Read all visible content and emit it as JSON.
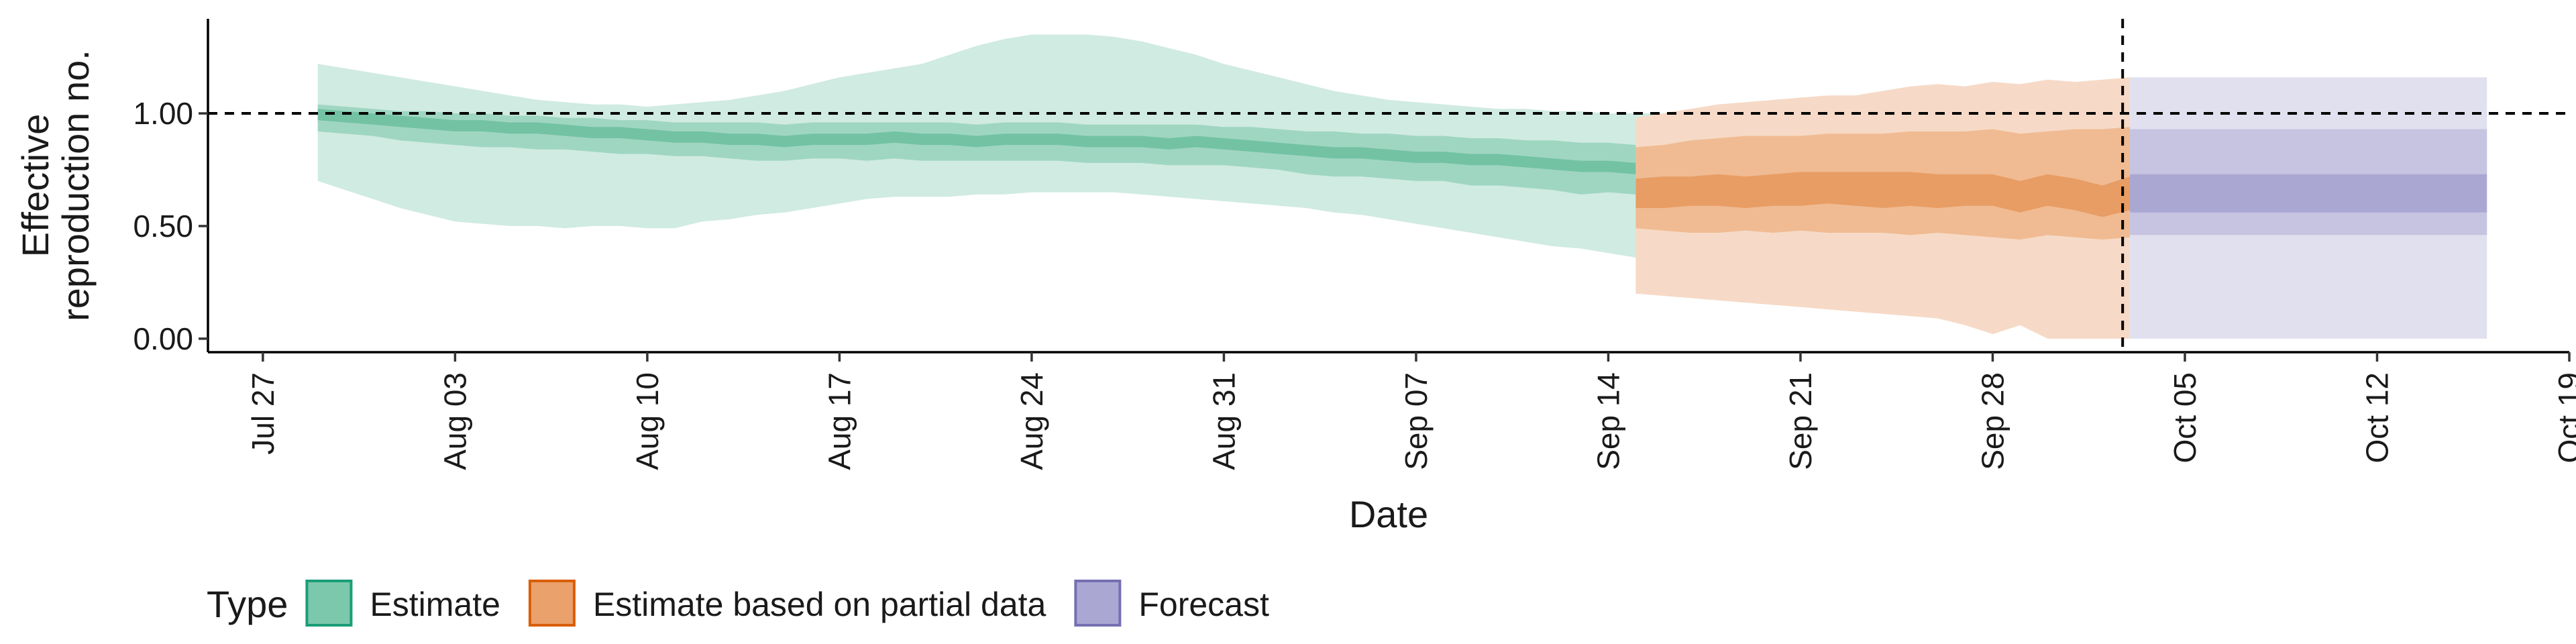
{
  "chart_data": {
    "type": "area",
    "xlabel": "Date",
    "ylabel_lines": [
      "Effective",
      "reproduction no."
    ],
    "x_ticks": [
      "2020-07-27",
      "2020-08-03",
      "2020-08-10",
      "2020-08-17",
      "2020-08-24",
      "2020-08-31",
      "2020-09-07",
      "2020-09-14",
      "2020-09-21",
      "2020-09-28",
      "2020-10-05",
      "2020-10-12",
      "2020-10-19"
    ],
    "x_tick_labels": [
      "Jul 27",
      "Aug 03",
      "Aug 10",
      "Aug 17",
      "Aug 24",
      "Aug 31",
      "Sep 07",
      "Sep 14",
      "Sep 21",
      "Sep 28",
      "Oct 05",
      "Oct 12",
      "Oct 19"
    ],
    "xlim": [
      "2020-07-25",
      "2020-10-19"
    ],
    "y_ticks": [
      0,
      0.5,
      1.0
    ],
    "y_tick_labels": [
      "0.00",
      "0.50",
      "1.00"
    ],
    "ylim": [
      -0.06,
      1.42
    ],
    "reference_line_y": 1.0,
    "forecast_start": "2020-10-02",
    "legend": {
      "title": "Type",
      "position": "bottom",
      "items": [
        {
          "label": "Estimate",
          "fill": "#7cc8ad",
          "stroke": "#1b9e77"
        },
        {
          "label": "Estimate based on partial data",
          "fill": "#eba16b",
          "stroke": "#d95f02"
        },
        {
          "label": "Forecast",
          "fill": "#aaa8d3",
          "stroke": "#7570b3"
        }
      ]
    },
    "series": [
      {
        "name": "Estimate",
        "start": "2020-07-29",
        "colors": {
          "outer": "#d0ebe1",
          "mid": "#9fd6c2",
          "inner": "#73c2a4"
        },
        "lower90": [
          0.7,
          0.66,
          0.62,
          0.58,
          0.55,
          0.52,
          0.51,
          0.5,
          0.5,
          0.49,
          0.5,
          0.5,
          0.49,
          0.49,
          0.52,
          0.53,
          0.55,
          0.56,
          0.58,
          0.6,
          0.62,
          0.63,
          0.63,
          0.63,
          0.64,
          0.64,
          0.65,
          0.65,
          0.65,
          0.65,
          0.64,
          0.63,
          0.62,
          0.61,
          0.6,
          0.59,
          0.58,
          0.56,
          0.55,
          0.53,
          0.51,
          0.49,
          0.47,
          0.45,
          0.43,
          0.41,
          0.4,
          0.38,
          0.36,
          0.34,
          0.33,
          0.31,
          0.3,
          0.29,
          0.28,
          0.27,
          0.26,
          0.25,
          0.24,
          0.23
        ],
        "lower50": [
          0.92,
          0.91,
          0.9,
          0.88,
          0.87,
          0.86,
          0.85,
          0.85,
          0.84,
          0.84,
          0.83,
          0.82,
          0.82,
          0.81,
          0.81,
          0.8,
          0.79,
          0.79,
          0.8,
          0.8,
          0.79,
          0.8,
          0.79,
          0.79,
          0.79,
          0.79,
          0.79,
          0.79,
          0.78,
          0.78,
          0.78,
          0.77,
          0.77,
          0.77,
          0.76,
          0.75,
          0.73,
          0.72,
          0.72,
          0.71,
          0.7,
          0.7,
          0.68,
          0.68,
          0.67,
          0.66,
          0.64,
          0.65,
          0.64,
          0.63,
          0.62,
          0.63,
          0.61,
          0.6,
          0.59,
          0.58,
          0.58,
          0.57,
          0.56,
          0.55
        ],
        "lower_med": [
          0.97,
          0.96,
          0.95,
          0.94,
          0.93,
          0.92,
          0.92,
          0.91,
          0.91,
          0.9,
          0.89,
          0.89,
          0.88,
          0.87,
          0.87,
          0.86,
          0.86,
          0.85,
          0.86,
          0.86,
          0.86,
          0.87,
          0.86,
          0.86,
          0.85,
          0.86,
          0.86,
          0.86,
          0.85,
          0.85,
          0.85,
          0.84,
          0.85,
          0.84,
          0.83,
          0.82,
          0.81,
          0.8,
          0.8,
          0.79,
          0.78,
          0.78,
          0.77,
          0.77,
          0.76,
          0.75,
          0.74,
          0.74,
          0.73,
          0.72,
          0.72,
          0.71,
          0.7,
          0.69,
          0.69,
          0.68,
          0.68,
          0.67,
          0.66,
          0.62
        ],
        "upper_med": [
          1.02,
          1.01,
          1.0,
          0.99,
          0.98,
          0.97,
          0.97,
          0.96,
          0.96,
          0.95,
          0.94,
          0.94,
          0.93,
          0.92,
          0.92,
          0.91,
          0.91,
          0.9,
          0.91,
          0.91,
          0.91,
          0.92,
          0.91,
          0.91,
          0.9,
          0.91,
          0.91,
          0.91,
          0.9,
          0.9,
          0.9,
          0.89,
          0.9,
          0.89,
          0.88,
          0.87,
          0.86,
          0.85,
          0.85,
          0.84,
          0.83,
          0.83,
          0.82,
          0.82,
          0.81,
          0.8,
          0.79,
          0.79,
          0.78,
          0.77,
          0.77,
          0.76,
          0.75,
          0.74,
          0.74,
          0.73,
          0.73,
          0.76,
          0.76,
          0.75
        ],
        "upper50": [
          1.04,
          1.03,
          1.02,
          1.01,
          1.01,
          1.0,
          1.0,
          0.99,
          0.99,
          0.98,
          0.98,
          0.97,
          0.97,
          0.96,
          0.96,
          0.96,
          0.96,
          0.95,
          0.96,
          0.96,
          0.96,
          0.96,
          0.96,
          0.96,
          0.95,
          0.96,
          0.96,
          0.96,
          0.95,
          0.95,
          0.95,
          0.95,
          0.95,
          0.94,
          0.94,
          0.93,
          0.92,
          0.92,
          0.91,
          0.91,
          0.9,
          0.9,
          0.89,
          0.89,
          0.88,
          0.88,
          0.87,
          0.87,
          0.86,
          0.86,
          0.85,
          0.85,
          0.84,
          0.84,
          0.84,
          0.85,
          0.85,
          0.85,
          0.85,
          0.84
        ],
        "upper90": [
          1.22,
          1.2,
          1.18,
          1.16,
          1.14,
          1.12,
          1.1,
          1.08,
          1.06,
          1.05,
          1.04,
          1.04,
          1.03,
          1.04,
          1.05,
          1.06,
          1.08,
          1.1,
          1.13,
          1.16,
          1.18,
          1.2,
          1.22,
          1.26,
          1.3,
          1.33,
          1.35,
          1.35,
          1.35,
          1.34,
          1.32,
          1.29,
          1.26,
          1.22,
          1.19,
          1.16,
          1.13,
          1.1,
          1.08,
          1.06,
          1.05,
          1.04,
          1.03,
          1.02,
          1.02,
          1.01,
          1.01,
          1.0,
          1.0,
          1.0,
          0.99,
          0.99,
          0.99,
          0.99,
          0.99,
          0.99,
          0.98,
          0.98,
          0.98,
          0.98
        ]
      },
      {
        "name": "Estimate based on partial data",
        "start": "2020-09-15",
        "colors": {
          "outer": "#f6dac7",
          "mid": "#f0bb93",
          "inner": "#e89d64"
        },
        "lower90": [
          0.2,
          0.19,
          0.18,
          0.17,
          0.16,
          0.15,
          0.14,
          0.13,
          0.12,
          0.11,
          0.1,
          0.09,
          0.06,
          0.02,
          0.06,
          0.0,
          0.0,
          0.0,
          0.0
        ],
        "lower50": [
          0.49,
          0.48,
          0.47,
          0.47,
          0.48,
          0.47,
          0.48,
          0.47,
          0.47,
          0.47,
          0.46,
          0.47,
          0.46,
          0.45,
          0.44,
          0.46,
          0.45,
          0.44,
          0.45
        ],
        "lower_med": [
          0.58,
          0.58,
          0.59,
          0.59,
          0.58,
          0.59,
          0.59,
          0.6,
          0.59,
          0.58,
          0.59,
          0.58,
          0.59,
          0.59,
          0.56,
          0.59,
          0.57,
          0.54,
          0.57
        ],
        "upper_med": [
          0.71,
          0.72,
          0.72,
          0.73,
          0.72,
          0.73,
          0.74,
          0.74,
          0.74,
          0.74,
          0.74,
          0.73,
          0.73,
          0.73,
          0.7,
          0.73,
          0.71,
          0.68,
          0.72
        ],
        "upper50": [
          0.85,
          0.86,
          0.88,
          0.89,
          0.9,
          0.9,
          0.9,
          0.91,
          0.91,
          0.91,
          0.92,
          0.92,
          0.92,
          0.93,
          0.91,
          0.92,
          0.93,
          0.93,
          0.94
        ],
        "upper90": [
          0.98,
          1.0,
          1.02,
          1.04,
          1.05,
          1.06,
          1.07,
          1.08,
          1.08,
          1.1,
          1.12,
          1.13,
          1.12,
          1.14,
          1.13,
          1.15,
          1.14,
          1.15,
          1.16
        ]
      },
      {
        "name": "Forecast",
        "start": "2020-10-03",
        "end": "2020-10-16",
        "colors": {
          "outer": "#e0e0ef",
          "mid": "#c6c4e1",
          "inner": "#aaa8d3"
        },
        "lower90": 0.0,
        "lower50": 0.46,
        "lower_med": 0.56,
        "upper_med": 0.73,
        "upper50": 0.93,
        "upper90": 1.16
      }
    ]
  }
}
